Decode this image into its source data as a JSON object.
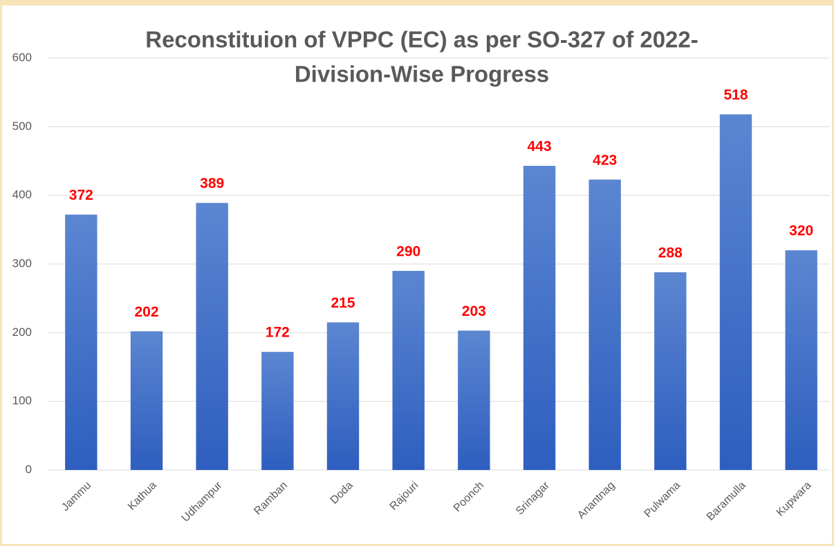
{
  "chart_data": {
    "type": "bar",
    "title": [
      "Reconstituion of VPPC (EC) as per SO-327 of 2022-",
      "Division-Wise Progress"
    ],
    "categories": [
      "Jammu",
      "Kathua",
      "Udhampur",
      "Ramban",
      "Doda",
      "Rajouri",
      "Poonch",
      "Srinagar",
      "Anantnag",
      "Pulwama",
      "Baramulla",
      "Kupwara"
    ],
    "values": [
      372,
      202,
      389,
      172,
      215,
      290,
      203,
      443,
      423,
      288,
      518,
      320
    ],
    "color": "#4472c4",
    "label_color": "#ff0000",
    "ylim": [
      0,
      600
    ],
    "yticks": [
      0,
      100,
      200,
      300,
      400,
      500,
      600
    ],
    "grid": true
  }
}
